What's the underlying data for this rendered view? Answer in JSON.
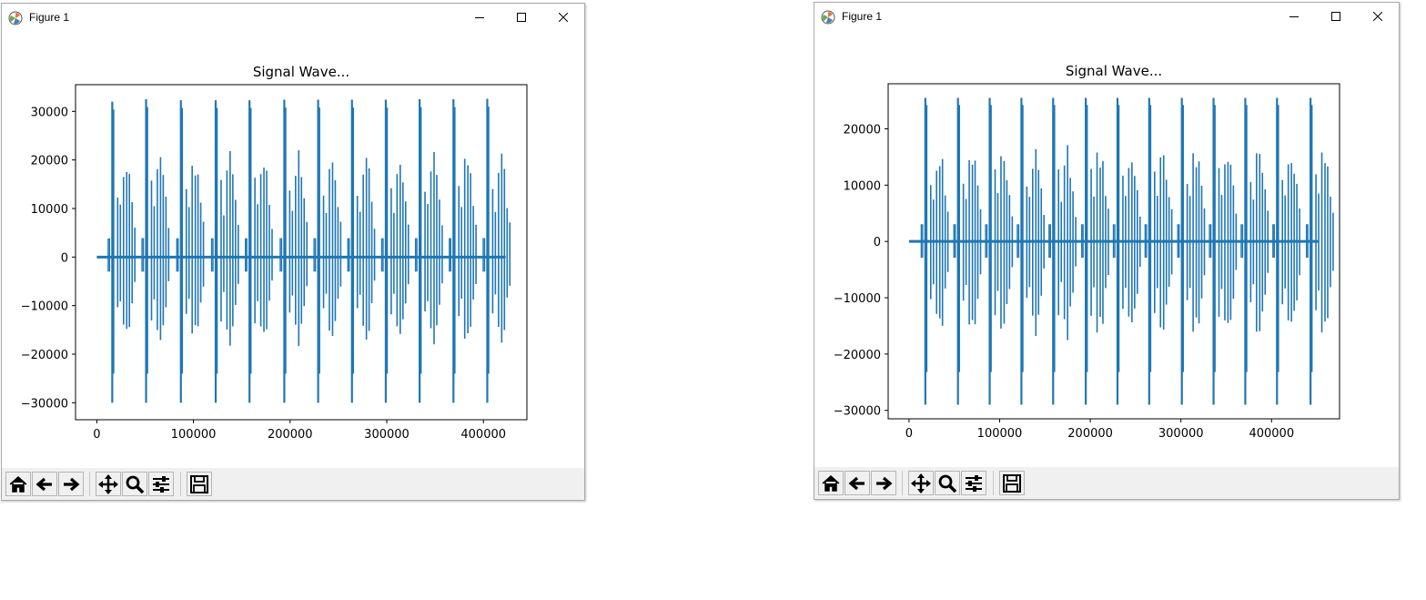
{
  "windows": [
    {
      "title": "Figure 1",
      "chart_data": {
        "type": "line",
        "title": "Signal Wave...",
        "xlabel": "",
        "ylabel": "",
        "xlim": [
          -22000,
          445000
        ],
        "ylim": [
          -33500,
          35500
        ],
        "xticks": [
          0,
          100000,
          200000,
          300000,
          400000
        ],
        "yticks": [
          -30000,
          -20000,
          -10000,
          0,
          10000,
          20000,
          30000
        ],
        "xtick_labels": [
          "0",
          "100000",
          "200000",
          "300000",
          "400000"
        ],
        "ytick_labels": [
          "−30000",
          "−20000",
          "−10000",
          "0",
          "10000",
          "20000",
          "30000"
        ],
        "series_color": "#1f77b4",
        "signal_end": 423000,
        "bursts": [
          {
            "x": 16000,
            "max": 32000,
            "min": -30000
          },
          {
            "x": 51000,
            "max": 32500,
            "min": -30000
          },
          {
            "x": 87000,
            "max": 32300,
            "min": -30000
          },
          {
            "x": 123000,
            "max": 32300,
            "min": -30000
          },
          {
            "x": 158000,
            "max": 32300,
            "min": -30000
          },
          {
            "x": 194000,
            "max": 32400,
            "min": -30000
          },
          {
            "x": 229000,
            "max": 32400,
            "min": -30000
          },
          {
            "x": 264000,
            "max": 32400,
            "min": -30000
          },
          {
            "x": 299000,
            "max": 32400,
            "min": -30000
          },
          {
            "x": 334000,
            "max": 32500,
            "min": -30000
          },
          {
            "x": 369000,
            "max": 32500,
            "min": -30000
          },
          {
            "x": 404000,
            "max": 32600,
            "min": -30000
          }
        ]
      }
    },
    {
      "title": "Figure 1",
      "chart_data": {
        "type": "line",
        "title": "Signal Wave...",
        "xlabel": "",
        "ylabel": "",
        "xlim": [
          -23000,
          475000
        ],
        "ylim": [
          -31500,
          28000
        ],
        "xticks": [
          0,
          100000,
          200000,
          300000,
          400000
        ],
        "yticks": [
          -30000,
          -20000,
          -10000,
          0,
          10000,
          20000
        ],
        "xtick_labels": [
          "0",
          "100000",
          "200000",
          "300000",
          "400000"
        ],
        "ytick_labels": [
          "−30000",
          "−20000",
          "−10000",
          "0",
          "10000",
          "20000"
        ],
        "series_color": "#1f77b4",
        "signal_end": 452000,
        "bursts": [
          {
            "x": 18000,
            "max": 25500,
            "min": -29000
          },
          {
            "x": 54000,
            "max": 25500,
            "min": -29000
          },
          {
            "x": 89000,
            "max": 25500,
            "min": -29000
          },
          {
            "x": 124000,
            "max": 25500,
            "min": -29000
          },
          {
            "x": 159000,
            "max": 25500,
            "min": -29000
          },
          {
            "x": 195000,
            "max": 25500,
            "min": -29000
          },
          {
            "x": 230000,
            "max": 25500,
            "min": -29000
          },
          {
            "x": 265000,
            "max": 25500,
            "min": -29000
          },
          {
            "x": 301000,
            "max": 25500,
            "min": -29000
          },
          {
            "x": 336000,
            "max": 25500,
            "min": -29000
          },
          {
            "x": 371000,
            "max": 25500,
            "min": -29000
          },
          {
            "x": 406000,
            "max": 25500,
            "min": -29000
          },
          {
            "x": 443000,
            "max": 25500,
            "min": -29000
          }
        ]
      }
    }
  ],
  "toolbar_buttons": [
    {
      "icon": "home-icon"
    },
    {
      "icon": "back-arrow-icon"
    },
    {
      "icon": "forward-arrow-icon"
    },
    {
      "icon": "pan-icon"
    },
    {
      "icon": "zoom-icon"
    },
    {
      "icon": "configure-subplots-icon"
    },
    {
      "icon": "save-icon"
    }
  ]
}
